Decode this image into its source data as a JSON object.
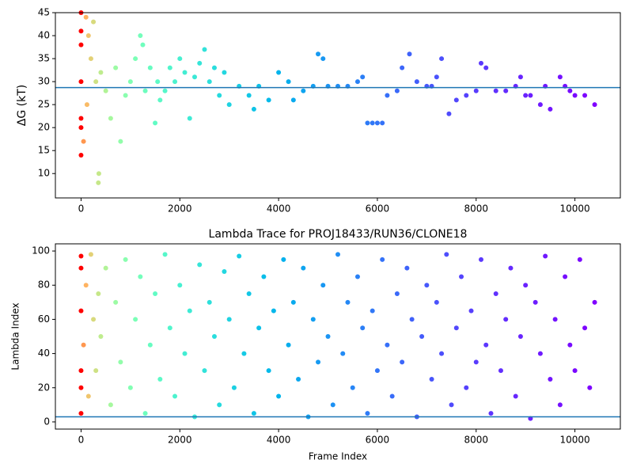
{
  "chart_data": [
    {
      "type": "scatter",
      "ylabel": "ΔG (kT)",
      "colormap": "rainbow_r",
      "xlim": [
        -520,
        10920
      ],
      "xticks": [
        0,
        2000,
        4000,
        6000,
        8000,
        10000
      ],
      "ylim": [
        4.7,
        45
      ],
      "yticks": [
        10,
        15,
        20,
        25,
        30,
        35,
        40,
        45
      ],
      "hline": 28.7,
      "hline_color": "#1f77b4",
      "x": [
        0,
        0,
        0,
        0,
        0,
        0,
        0,
        50,
        100,
        120,
        150,
        200,
        250,
        300,
        350,
        360,
        400,
        500,
        600,
        700,
        800,
        900,
        1000,
        1100,
        1200,
        1250,
        1300,
        1400,
        1500,
        1550,
        1600,
        1700,
        1800,
        1900,
        2000,
        2100,
        2200,
        2300,
        2400,
        2500,
        2600,
        2700,
        2800,
        2900,
        3000,
        3200,
        3400,
        3500,
        3600,
        3800,
        4000,
        4200,
        4300,
        4500,
        4700,
        4800,
        4900,
        5000,
        5200,
        5400,
        5600,
        5700,
        5800,
        5900,
        6000,
        6100,
        6200,
        6400,
        6500,
        6650,
        6800,
        7000,
        7100,
        7200,
        7300,
        7450,
        7600,
        7800,
        8000,
        8100,
        8200,
        8400,
        8600,
        8800,
        8900,
        9000,
        9100,
        9300,
        9400,
        9500,
        9700,
        9800,
        9900,
        10000,
        10200,
        10400
      ],
      "values": [
        14,
        20,
        22,
        30,
        38,
        41,
        45,
        17,
        44,
        25,
        40,
        35,
        43,
        30,
        8,
        10,
        32,
        28,
        22,
        33,
        17,
        27,
        30,
        35,
        40,
        38,
        28,
        33,
        21,
        30,
        26,
        28,
        33,
        30,
        35,
        32,
        22,
        31,
        34,
        37,
        30,
        33,
        27,
        32,
        25,
        29,
        27,
        24,
        29,
        26,
        32,
        30,
        26,
        28,
        29,
        36,
        35,
        29,
        29,
        29,
        30,
        31,
        21,
        21,
        21,
        21,
        27,
        28,
        33,
        36,
        30,
        29,
        29,
        31,
        35,
        23,
        26,
        27,
        28,
        34,
        33,
        28,
        28,
        29,
        31,
        27,
        27,
        25,
        29,
        24,
        31,
        29,
        28,
        27,
        27,
        25
      ]
    },
    {
      "type": "scatter",
      "title": "Lambda Trace for PROJ18433/RUN36/CLONE18",
      "xlabel": "Frame Index",
      "ylabel": "Lambda Index",
      "colormap": "rainbow_r",
      "xlim": [
        -520,
        10920
      ],
      "xticks": [
        0,
        2000,
        4000,
        6000,
        8000,
        10000
      ],
      "ylim": [
        -4.2,
        104.2
      ],
      "yticks": [
        0,
        20,
        40,
        60,
        80,
        100
      ],
      "hline": 3,
      "hline_color": "#1f77b4",
      "x": [
        0,
        0,
        0,
        0,
        0,
        0,
        50,
        100,
        150,
        200,
        250,
        300,
        350,
        400,
        500,
        600,
        700,
        800,
        900,
        1000,
        1100,
        1200,
        1300,
        1400,
        1500,
        1600,
        1700,
        1800,
        1900,
        2000,
        2100,
        2200,
        2300,
        2400,
        2500,
        2600,
        2700,
        2800,
        2900,
        3000,
        3100,
        3200,
        3300,
        3400,
        3500,
        3600,
        3700,
        3800,
        3900,
        4000,
        4100,
        4200,
        4300,
        4400,
        4500,
        4600,
        4700,
        4800,
        4900,
        5000,
        5100,
        5200,
        5300,
        5400,
        5500,
        5600,
        5700,
        5800,
        5900,
        6000,
        6100,
        6200,
        6300,
        6400,
        6500,
        6600,
        6700,
        6800,
        6900,
        7000,
        7100,
        7200,
        7300,
        7400,
        7500,
        7600,
        7700,
        7800,
        7900,
        8000,
        8100,
        8200,
        8300,
        8400,
        8500,
        8600,
        8700,
        8800,
        8900,
        9000,
        9100,
        9200,
        9300,
        9400,
        9500,
        9600,
        9700,
        9800,
        9900,
        10000,
        10100,
        10200,
        10300,
        10400
      ],
      "values": [
        5,
        20,
        30,
        65,
        90,
        97,
        45,
        80,
        15,
        98,
        60,
        30,
        75,
        50,
        90,
        10,
        70,
        35,
        95,
        20,
        60,
        85,
        5,
        45,
        75,
        25,
        98,
        55,
        15,
        80,
        40,
        65,
        3,
        92,
        30,
        70,
        50,
        10,
        88,
        60,
        20,
        97,
        40,
        75,
        5,
        55,
        85,
        30,
        65,
        15,
        95,
        45,
        70,
        25,
        90,
        3,
        60,
        35,
        80,
        50,
        10,
        98,
        40,
        70,
        20,
        85,
        55,
        5,
        65,
        30,
        95,
        45,
        15,
        75,
        35,
        90,
        60,
        3,
        50,
        80,
        25,
        70,
        40,
        98,
        10,
        55,
        85,
        20,
        65,
        35,
        95,
        45,
        5,
        75,
        30,
        60,
        90,
        15,
        50,
        80,
        2,
        70,
        40,
        97,
        25,
        60,
        10,
        85,
        45,
        30,
        95,
        55,
        20,
        70
      ]
    }
  ]
}
